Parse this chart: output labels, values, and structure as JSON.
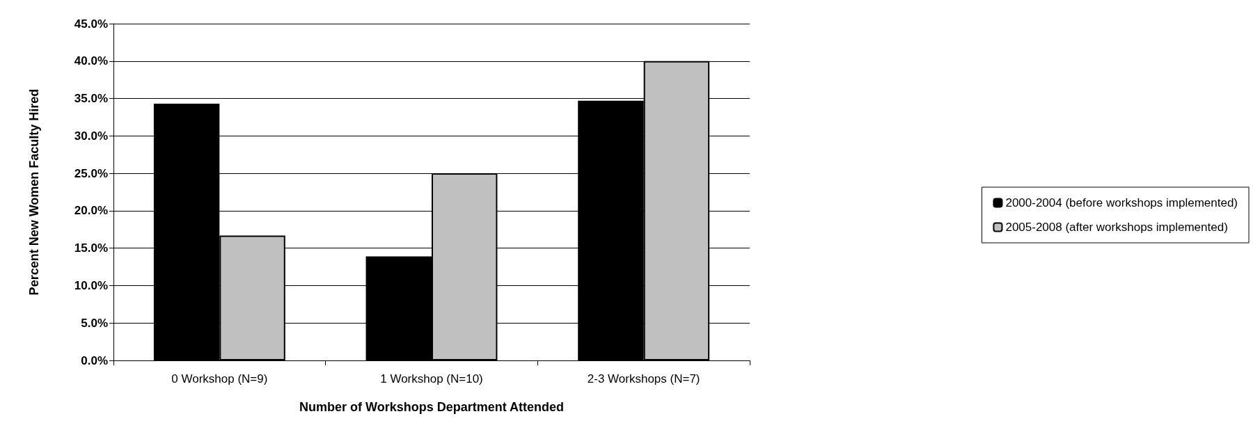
{
  "chart_data": {
    "type": "bar",
    "xlabel": "Number of Workshops Department Attended",
    "ylabel": "Percent New Women Faculty Hired",
    "categories": [
      "0 Workshop (N=9)",
      "1 Workshop (N=10)",
      "2-3 Workshops (N=7)"
    ],
    "series": [
      {
        "name": "2000-2004 (before workshops implemented)",
        "color": "#000000",
        "values": [
          34.3,
          13.9,
          34.7
        ]
      },
      {
        "name": "2005-2008 (after workshops implemented)",
        "color": "#c0c0c0",
        "values": [
          16.7,
          25.0,
          40.0
        ]
      }
    ],
    "ylim": [
      0,
      45
    ],
    "yticks": [
      {
        "value": 0,
        "label": "0.0%"
      },
      {
        "value": 5,
        "label": "5.0%"
      },
      {
        "value": 10,
        "label": "10.0%"
      },
      {
        "value": 15,
        "label": "15.0%"
      },
      {
        "value": 20,
        "label": "20.0%"
      },
      {
        "value": 25,
        "label": "25.0%"
      },
      {
        "value": 30,
        "label": "30.0%"
      },
      {
        "value": 35,
        "label": "35.0%"
      },
      {
        "value": 40,
        "label": "40.0%"
      },
      {
        "value": 45,
        "label": "45.0%"
      }
    ],
    "grid": "y",
    "legend": "right"
  }
}
